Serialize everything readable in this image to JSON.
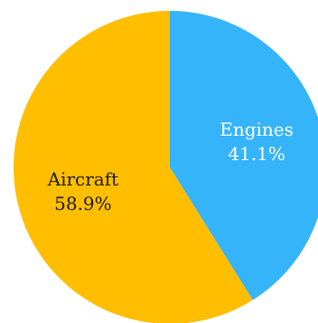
{
  "chart_data": {
    "type": "pie",
    "title": "",
    "start_angle_deg": 0,
    "direction": "clockwise",
    "legend": "none",
    "slices": [
      {
        "label": "Engines",
        "value": 41.1,
        "percent_label": "41.1%",
        "color": "#36b4fa",
        "text_color": "#ffffff"
      },
      {
        "label": "Aircraft",
        "value": 58.9,
        "percent_label": "58.9%",
        "color": "#ffbe00",
        "text_color": "#1a1a1a"
      }
    ]
  }
}
